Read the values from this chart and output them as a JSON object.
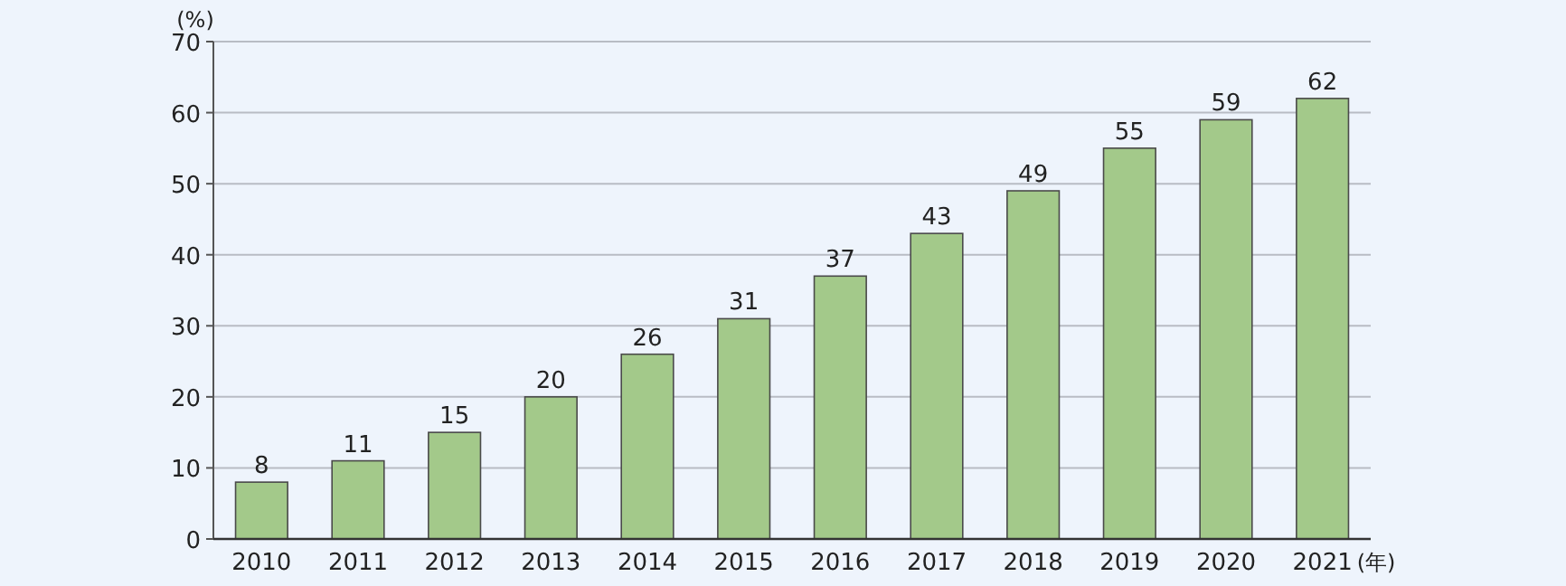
{
  "chart_data": {
    "type": "bar",
    "categories": [
      "2010",
      "2011",
      "2012",
      "2013",
      "2014",
      "2015",
      "2016",
      "2017",
      "2018",
      "2019",
      "2020",
      "2021"
    ],
    "values": [
      8,
      11,
      15,
      20,
      26,
      31,
      37,
      43,
      49,
      55,
      59,
      62
    ],
    "color": "#a3c98a",
    "ylabel": "(%)",
    "xlabel": "(年)",
    "ylim": [
      0,
      70
    ],
    "yticks": [
      0,
      10,
      20,
      30,
      40,
      50,
      60,
      70
    ],
    "grid": "y",
    "data_labels": true
  }
}
